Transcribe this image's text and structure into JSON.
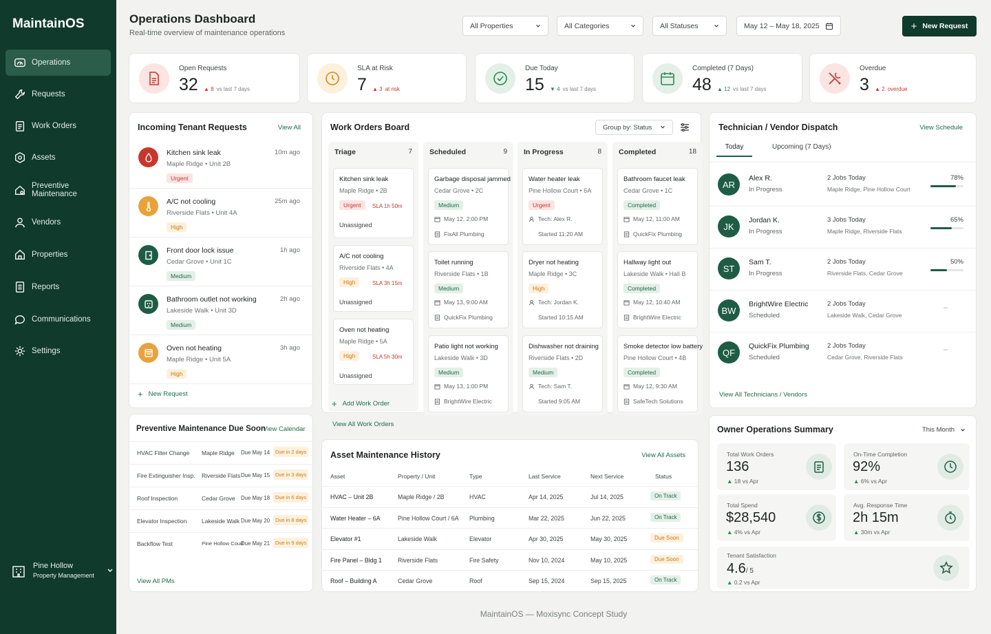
{
  "brand": "MaintainOS",
  "nav": [
    "Operations",
    "Requests",
    "Work Orders",
    "Assets",
    "Preventive Maintenance",
    "Vendors",
    "Properties",
    "Reports",
    "Communications",
    "Settings"
  ],
  "org": {
    "name": "Pine Hollow",
    "sub": "Property Management"
  },
  "header": {
    "title": "Operations Dashboard",
    "subtitle": "Real-time overview of maintenance operations",
    "filters": [
      "All Properties",
      "All Categories",
      "All Statuses",
      "May 12 – May 18, 2025"
    ],
    "new_request": "New Request"
  },
  "kpis": [
    {
      "label": "Open Requests",
      "value": "32",
      "delta": "8",
      "note": "vs last 7 days",
      "color": "#c8372d",
      "bg": "#fbe4e1"
    },
    {
      "label": "SLA at Risk",
      "value": "7",
      "delta": "3",
      "note": "at risk",
      "color": "#d68a1c",
      "bg": "#fdf0dc"
    },
    {
      "label": "Due Today",
      "value": "15",
      "delta": "4",
      "note": "vs last 7 days",
      "color": "#2a8a4e",
      "bg": "#e3efe7"
    },
    {
      "label": "Completed (7 Days)",
      "value": "48",
      "delta": "12",
      "note": "vs last 7 days",
      "color": "#2a8a4e",
      "bg": "#e3efe7"
    },
    {
      "label": "Overdue",
      "value": "3",
      "delta": "2",
      "note": "overdue",
      "color": "#c8372d",
      "bg": "#fbe4e1"
    }
  ],
  "incoming": {
    "title": "Incoming Tenant Requests",
    "view_all": "View All",
    "new_request": "New Request",
    "items": [
      {
        "title": "Kitchen sink leak",
        "sub": "Maple Ridge  •  Unit 2B",
        "time": "10m ago",
        "badge": "Urgent",
        "color": "#c8372d",
        "bg": "#c8372d",
        "icon": "drop-icon"
      },
      {
        "title": "A/C not cooling",
        "sub": "Riverside Flats  •  Unit 4A",
        "time": "25m ago",
        "badge": "High",
        "color": "#c97a14",
        "bg": "#e8a23b",
        "icon": "thermometer-icon"
      },
      {
        "title": "Front door lock issue",
        "sub": "Cedar Grove  •  Unit 1C",
        "time": "1h ago",
        "badge": "Medium",
        "color": "#1e6b4c",
        "bg": "#1e5c46",
        "icon": "door-icon"
      },
      {
        "title": "Bathroom outlet not working",
        "sub": "Lakeside Walk  •  Unit 3D",
        "time": "2h ago",
        "badge": "Medium",
        "color": "#1e6b4c",
        "bg": "#1e5c46",
        "icon": "outlet-icon"
      },
      {
        "title": "Oven not heating",
        "sub": "Maple Ridge  •  Unit 5A",
        "time": "3h ago",
        "badge": "High",
        "color": "#c97a14",
        "bg": "#e8a23b",
        "icon": "oven-icon"
      }
    ]
  },
  "board": {
    "title": "Work Orders Board",
    "group_by": "Group by: Status",
    "add": "Add Work Order",
    "view_all": "View All Work Orders",
    "columns": [
      {
        "name": "Triage",
        "count": "7",
        "cards": [
          {
            "title": "Kitchen sink leak",
            "sub": "Maple Ridge  •  2B",
            "badge": "Urgent",
            "sla": "SLA 1h 50m",
            "line1": "Unassigned"
          },
          {
            "title": "A/C not cooling",
            "sub": "Riverside Flats  •  4A",
            "badge": "High",
            "sla": "SLA 3h 15m",
            "line1": "Unassigned"
          },
          {
            "title": "Oven not heating",
            "sub": "Maple Ridge  •  5A",
            "badge": "High",
            "sla": "SLA 5h 30m",
            "line1": "Unassigned"
          }
        ]
      },
      {
        "name": "Scheduled",
        "count": "9",
        "cards": [
          {
            "title": "Garbage disposal jammed",
            "sub": "Cedar Grove  •  2C",
            "badge": "Medium",
            "line1": "May 12, 2:00 PM",
            "line2": "FixAll Plumbing"
          },
          {
            "title": "Toilet running",
            "sub": "Riverside Flats  •  1B",
            "badge": "Medium",
            "line1": "May 13, 9:00 AM",
            "line2": "QuickFix Plumbing"
          },
          {
            "title": "Patio light not working",
            "sub": "Lakeside Walk  •  3D",
            "badge": "Medium",
            "line1": "May 13, 1:00 PM",
            "line2": "BrightWire Electric"
          }
        ]
      },
      {
        "name": "In Progress",
        "count": "8",
        "cards": [
          {
            "title": "Water heater leak",
            "sub": "Pine Hollow Court  •  6A",
            "badge": "Urgent",
            "line1": "Tech: Alex R.",
            "line2": "Started 11:20 AM"
          },
          {
            "title": "Dryer not heating",
            "sub": "Maple Ridge  •  3C",
            "badge": "High",
            "line1": "Tech: Jordan K.",
            "line2": "Started 10:15 AM"
          },
          {
            "title": "Dishwasher not draining",
            "sub": "Riverside Flats  •  2D",
            "badge": "Medium",
            "line1": "Tech: Sam T.",
            "line2": "Started 9:05 AM"
          }
        ]
      },
      {
        "name": "Completed",
        "count": "18",
        "cards": [
          {
            "title": "Bathroom faucet leak",
            "sub": "Cedar Grove  •  1C",
            "badge": "Completed",
            "line1": "May 12, 11:00 AM",
            "line2": "QuickFix Plumbing"
          },
          {
            "title": "Hallway light out",
            "sub": "Lakeside Walk  •  Hall B",
            "badge": "Completed",
            "line1": "May 12, 10:40 AM",
            "line2": "BrightWire Electric"
          },
          {
            "title": "Smoke detector low battery",
            "sub": "Pine Hollow Court  •  4B",
            "badge": "Completed",
            "line1": "May 12, 9:30 AM",
            "line2": "SafeTech Solutions"
          }
        ]
      }
    ]
  },
  "dispatch": {
    "title": "Technician / Vendor Dispatch",
    "view_schedule": "View Schedule",
    "tabs": [
      "Today",
      "Upcoming (7 Days)"
    ],
    "view_all": "View All Technicians / Vendors",
    "items": [
      {
        "initials": "AR",
        "name": "Alex R.",
        "status": "In Progress",
        "jobs": "2 Jobs Today",
        "props": "Maple Ridge, Pine Hollow Court",
        "pct": "78%",
        "frac": 0.78
      },
      {
        "initials": "JK",
        "name": "Jordan K.",
        "status": "In Progress",
        "jobs": "3 Jobs Today",
        "props": "Maple Ridge, Riverside Flats",
        "pct": "65%",
        "frac": 0.65
      },
      {
        "initials": "ST",
        "name": "Sam T.",
        "status": "In Progress",
        "jobs": "2 Jobs Today",
        "props": "Riverside Flats, Cedar Grove",
        "pct": "50%",
        "frac": 0.5
      },
      {
        "initials": "BW",
        "name": "BrightWire Electric",
        "status": "Scheduled",
        "jobs": "2 Jobs Today",
        "props": "Lakeside Walk, Cedar Grove",
        "pct": "–"
      },
      {
        "initials": "QF",
        "name": "QuickFix Plumbing",
        "status": "Scheduled",
        "jobs": "2 Jobs Today",
        "props": "Cedar Grove, Riverside Flats",
        "pct": "–"
      }
    ]
  },
  "pm": {
    "title": "Preventive Maintenance Due Soon",
    "view_calendar": "View Calendar",
    "view_all": "View All PMs",
    "items": [
      {
        "task": "HVAC Filter Change",
        "prop": "Maple Ridge",
        "due": "Due May 14",
        "in": "Due in 2 days"
      },
      {
        "task": "Fire Extinguisher Insp.",
        "prop": "Riverside Flats",
        "due": "Due May 15",
        "in": "Due in 3 days"
      },
      {
        "task": "Roof Inspection",
        "prop": "Cedar Grove",
        "due": "Due May 18",
        "in": "Due in 6 days"
      },
      {
        "task": "Elevator Inspection",
        "prop": "Lakeside Walk",
        "due": "Due May 20",
        "in": "Due in 8 days"
      },
      {
        "task": "Backflow Test",
        "prop": "Pine Hollow Court",
        "due": "Due May 21",
        "in": "Due in 9 days"
      }
    ]
  },
  "assets": {
    "title": "Asset Maintenance History",
    "view_all": "View All Assets",
    "headers": [
      "Asset",
      "Property / Unit",
      "Type",
      "Last Service",
      "Next Service",
      "Status"
    ],
    "rows": [
      [
        "HVAC – Unit 2B",
        "Maple Ridge / 2B",
        "HVAC",
        "Apr 14, 2025",
        "Jul 14, 2025",
        "On Track"
      ],
      [
        "Water Heater – 6A",
        "Pine Hollow Court / 6A",
        "Plumbing",
        "Mar 22, 2025",
        "Jun 22, 2025",
        "On Track"
      ],
      [
        "Elevator #1",
        "Lakeside Walk",
        "Elevator",
        "Apr 30, 2025",
        "May 30, 2025",
        "Due Soon"
      ],
      [
        "Fire Panel – Bldg 1",
        "Riverside Flats",
        "Fire Safety",
        "Nov 10, 2024",
        "May 10, 2025",
        "Due Soon"
      ],
      [
        "Roof – Building A",
        "Cedar Grove",
        "Roof",
        "Sep 15, 2024",
        "Sep 15, 2025",
        "On Track"
      ]
    ]
  },
  "summary": {
    "title": "Owner Operations Summary",
    "period": "This Month",
    "metrics": [
      {
        "label": "Total Work Orders",
        "value": "136",
        "delta": "18  vs Apr",
        "icon": "clipboard-icon"
      },
      {
        "label": "On-Time Completion",
        "value": "92%",
        "delta": "6%  vs Apr",
        "icon": "clock-icon"
      },
      {
        "label": "Total Spend",
        "value": "$28,540",
        "delta": "4%  vs Apr",
        "icon": "dollar-icon"
      },
      {
        "label": "Avg. Response Time",
        "value": "2h 15m",
        "delta": "30m  vs Apr",
        "icon": "stopwatch-icon"
      }
    ],
    "satisfaction": {
      "label": "Tenant Satisfaction",
      "value": "4.6",
      "scale": "/ 5",
      "delta": "0.2  vs Apr"
    }
  },
  "footer": "MaintainOS — Moxisync Concept Study"
}
